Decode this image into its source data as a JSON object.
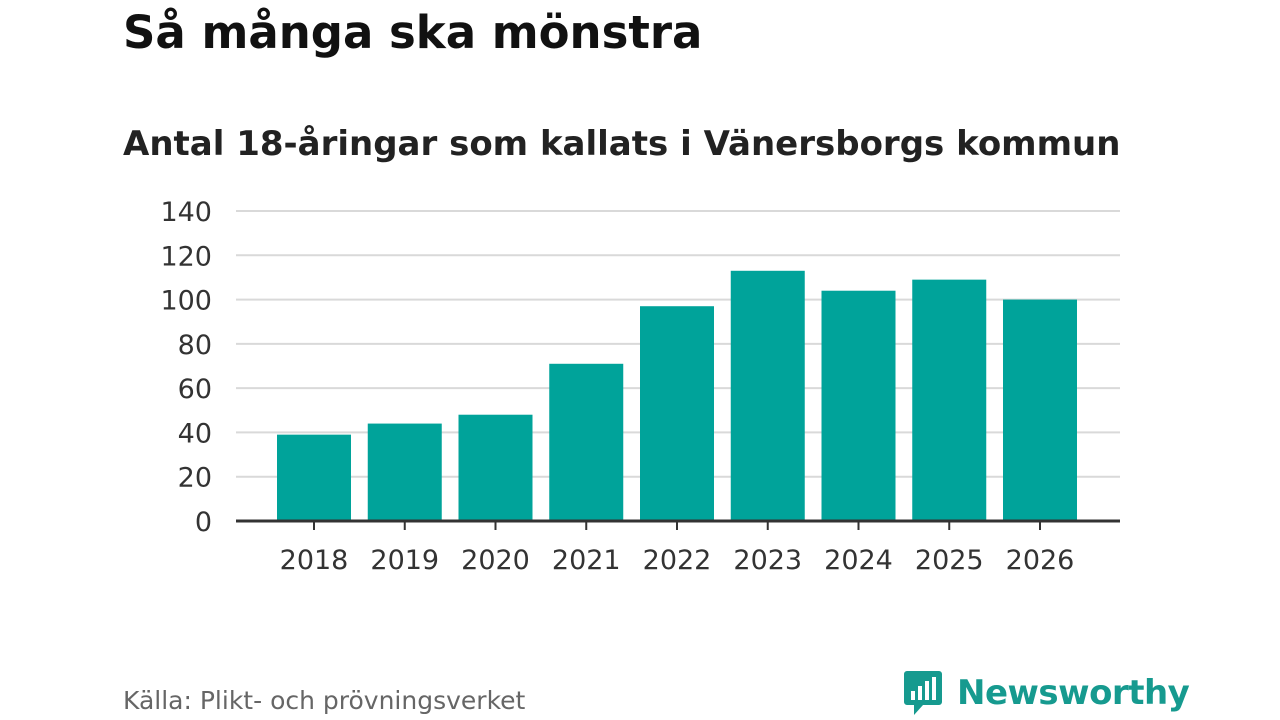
{
  "title": "Så många ska mönstra",
  "subtitle": "Antal 18-åringar som kallats i Vänersborgs kommun",
  "source": "Källa: Plikt- och prövningsverket",
  "brand": {
    "name": "Newsworthy",
    "icon": "newsworthy-logo-icon",
    "color": "#169a8f"
  },
  "colors": {
    "bar": "#00a39a",
    "grid": "#d9d9d9",
    "axis": "#333333"
  },
  "chart_data": {
    "type": "bar",
    "title": "Så många ska mönstra",
    "subtitle": "Antal 18-åringar som kallats i Vänersborgs kommun",
    "xlabel": "",
    "ylabel": "",
    "categories": [
      "2018",
      "2019",
      "2020",
      "2021",
      "2022",
      "2023",
      "2024",
      "2025",
      "2026"
    ],
    "values": [
      39,
      44,
      48,
      71,
      97,
      113,
      104,
      109,
      100
    ],
    "ylim": [
      0,
      140
    ],
    "yticks": [
      0,
      20,
      40,
      60,
      80,
      100,
      120,
      140
    ],
    "grid": true,
    "legend": "none"
  }
}
